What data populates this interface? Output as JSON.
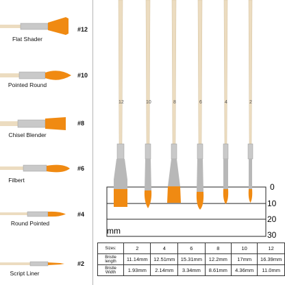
{
  "left_panel": {
    "brushes": [
      {
        "name": "Flat Shader",
        "size": "#12",
        "tip": "flat"
      },
      {
        "name": "Pointed Round",
        "size": "#10",
        "tip": "pointed"
      },
      {
        "name": "Chisel Blender",
        "size": "#8",
        "tip": "chisel"
      },
      {
        "name": "Filbert",
        "size": "#6",
        "tip": "filbert"
      },
      {
        "name": "Round Pointed",
        "size": "#4",
        "tip": "round"
      },
      {
        "name": "Script Liner",
        "size": "#2",
        "tip": "liner"
      }
    ]
  },
  "right_panel": {
    "handle_numbers": [
      "12",
      "10",
      "8",
      "6",
      "4",
      "2"
    ],
    "scale": {
      "marks": [
        "0",
        "10",
        "20",
        "30"
      ],
      "unit": "mm"
    }
  },
  "specs_table": {
    "header_label": "Sizes:",
    "sizes": [
      "2",
      "4",
      "6",
      "8",
      "10",
      "12"
    ],
    "rows": [
      {
        "label": "Bristle length",
        "values": [
          "11.14mm",
          "12.51mm",
          "15.31mm",
          "12.2mm",
          "17mm",
          "16.39mm"
        ]
      },
      {
        "label": "Bristle Width",
        "values": [
          "1.93mm",
          "2.14mm",
          "3.34mm",
          "8.61mm",
          "4.36mm",
          "11.0mm"
        ]
      }
    ]
  },
  "colors": {
    "bristle": "#f08a12",
    "wood": "#ecdcc0",
    "ferrule": "#c9c9c9"
  }
}
